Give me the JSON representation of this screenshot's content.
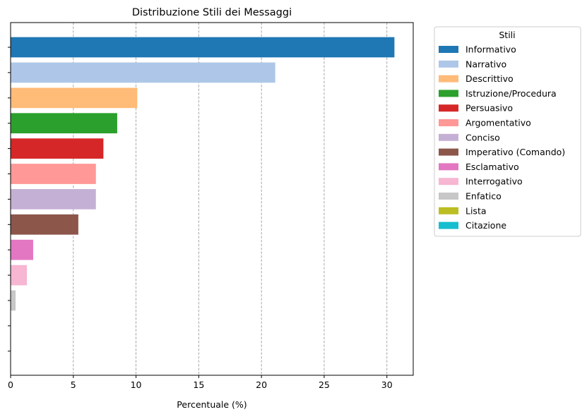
{
  "chart_data": {
    "type": "bar",
    "orientation": "horizontal",
    "title": "Distribuzione Stili dei Messaggi",
    "xlabel": "Percentuale (%)",
    "ylabel": "",
    "xlim": [
      0,
      32.1
    ],
    "xticks": [
      0,
      5,
      10,
      15,
      20,
      25,
      30
    ],
    "grid": "x-dashed",
    "legend_title": "Stili",
    "legend_position": "outside-right",
    "categories": [
      "Informativo",
      "Narrativo",
      "Descrittivo",
      "Istruzione/Procedura",
      "Persuasivo",
      "Argomentativo",
      "Conciso",
      "Imperativo (Comando)",
      "Esclamativo",
      "Interrogativo",
      "Enfatico",
      "Lista",
      "Citazione"
    ],
    "values": [
      30.6,
      21.1,
      10.1,
      8.5,
      7.4,
      6.8,
      6.8,
      5.4,
      1.8,
      1.3,
      0.4,
      0,
      0
    ],
    "colors": [
      "#1f77b4",
      "#aec7e8",
      "#ffbb78",
      "#2ca02c",
      "#d62728",
      "#ff9896",
      "#c5b0d5",
      "#8c564b",
      "#e377c2",
      "#f7b6d2",
      "#c7c7c7",
      "#bcbd22",
      "#17becf"
    ]
  }
}
